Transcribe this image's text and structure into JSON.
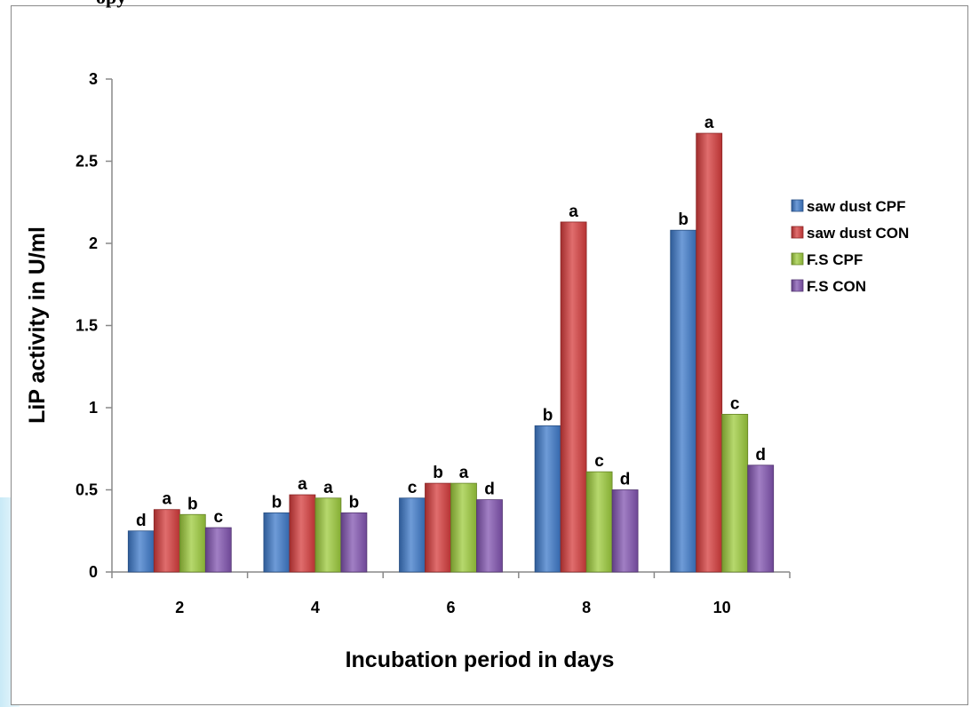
{
  "header_fragment": "opy",
  "colors": {
    "saw_dust_cpf": "#3d79c9",
    "saw_dust_con": "#d63c3c",
    "fs_cpf": "#9dcb3c",
    "fs_con": "#8154b0"
  },
  "chart_data": {
    "type": "bar",
    "title": "",
    "xlabel": "Incubation period in days",
    "ylabel": "LiP activity in U/ml",
    "categories": [
      "2",
      "4",
      "6",
      "8",
      "10"
    ],
    "ylim": [
      0,
      3
    ],
    "yticks": [
      "0",
      "0.5",
      "1",
      "1.5",
      "2",
      "2.5",
      "3"
    ],
    "grid": false,
    "legend_position": "right",
    "series": [
      {
        "name": "saw dust CPF",
        "color": "#3d79c9",
        "values": [
          0.25,
          0.36,
          0.45,
          0.89,
          2.08
        ],
        "labels": [
          "d",
          "b",
          "c",
          "b",
          "b"
        ]
      },
      {
        "name": "saw dust CON",
        "color": "#d63c3c",
        "values": [
          0.38,
          0.47,
          0.54,
          2.13,
          2.67
        ],
        "labels": [
          "a",
          "a",
          "b",
          "a",
          "a"
        ]
      },
      {
        "name": "F.S CPF",
        "color": "#9dcb3c",
        "values": [
          0.35,
          0.45,
          0.54,
          0.61,
          0.96
        ],
        "labels": [
          "b",
          "a",
          "a",
          "c",
          "c"
        ]
      },
      {
        "name": "F.S CON",
        "color": "#8154b0",
        "values": [
          0.27,
          0.36,
          0.44,
          0.5,
          0.65
        ],
        "labels": [
          "c",
          "b",
          "d",
          "d",
          "d"
        ]
      }
    ]
  }
}
